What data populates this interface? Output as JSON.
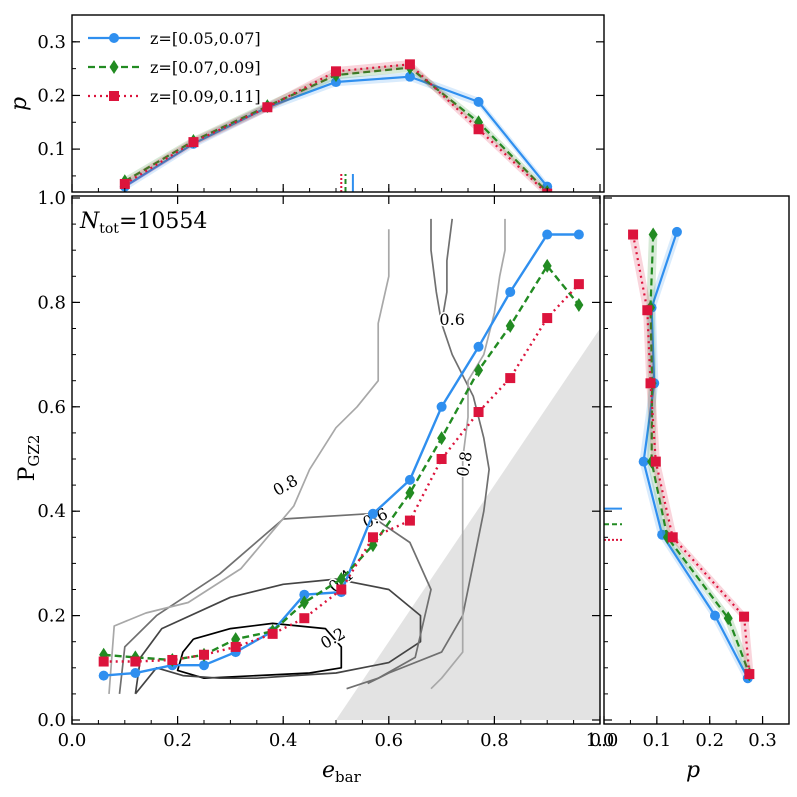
{
  "colors": {
    "s0": "#2f8fef",
    "s1": "#228b22",
    "s2": "#dc143c",
    "shade": "#e3e3e3"
  },
  "chart_data": [
    {
      "id": "main",
      "type": "line",
      "annotation_prefix": "N",
      "annotation_sub": "tot",
      "annotation_value": "=10554",
      "xlabel_main": "e",
      "xlabel_sub": "bar",
      "ylabel_main": "P",
      "ylabel_sub": "GZ2",
      "xlim": [
        0.0,
        1.0
      ],
      "ylim": [
        0.0,
        1.0
      ],
      "xticks": [
        "0.0",
        "0.2",
        "0.4",
        "0.6",
        "0.8",
        "1.0"
      ],
      "yticks": [
        "0.0",
        "0.2",
        "0.4",
        "0.6",
        "0.8",
        "1.0"
      ],
      "series": [
        {
          "name": "z=[0.05,0.07]",
          "color": "#2f8fef",
          "marker": "circle",
          "dash": "solid",
          "x": [
            0.06,
            0.12,
            0.19,
            0.25,
            0.31,
            0.38,
            0.44,
            0.51,
            0.57,
            0.64,
            0.7,
            0.77,
            0.83,
            0.9,
            0.96
          ],
          "y": [
            0.085,
            0.09,
            0.105,
            0.105,
            0.13,
            0.17,
            0.24,
            0.245,
            0.395,
            0.46,
            0.6,
            0.715,
            0.82,
            0.93,
            0.93
          ]
        },
        {
          "name": "z=[0.07,0.09]",
          "color": "#228b22",
          "marker": "diamond",
          "dash": "dashed",
          "x": [
            0.06,
            0.12,
            0.19,
            0.25,
            0.31,
            0.38,
            0.44,
            0.51,
            0.57,
            0.64,
            0.7,
            0.77,
            0.83,
            0.9,
            0.96
          ],
          "y": [
            0.125,
            0.12,
            0.115,
            0.125,
            0.155,
            0.17,
            0.225,
            0.27,
            0.335,
            0.435,
            0.54,
            0.67,
            0.755,
            0.87,
            0.795
          ]
        },
        {
          "name": "z=[0.09,0.11]",
          "color": "#dc143c",
          "marker": "square",
          "dash": "dotted",
          "x": [
            0.06,
            0.12,
            0.19,
            0.25,
            0.31,
            0.38,
            0.44,
            0.51,
            0.57,
            0.64,
            0.7,
            0.77,
            0.83,
            0.9,
            0.96
          ],
          "y": [
            0.112,
            0.112,
            0.115,
            0.125,
            0.14,
            0.165,
            0.195,
            0.25,
            0.35,
            0.382,
            0.5,
            0.59,
            0.655,
            0.77,
            0.835
          ]
        }
      ],
      "contours": [
        {
          "label": "0.2",
          "level": 0.2,
          "color": "#000000",
          "points": [
            [
              0.23,
              0.155
            ],
            [
              0.3,
              0.175
            ],
            [
              0.38,
              0.185
            ],
            [
              0.48,
              0.175
            ],
            [
              0.51,
              0.14
            ],
            [
              0.51,
              0.1
            ],
            [
              0.45,
              0.09
            ],
            [
              0.35,
              0.085
            ],
            [
              0.25,
              0.08
            ],
            [
              0.2,
              0.095
            ],
            [
              0.21,
              0.13
            ],
            [
              0.23,
              0.155
            ]
          ]
        },
        {
          "label": "0.4",
          "level": 0.4,
          "color": "#444444",
          "points": [
            [
              0.12,
              0.05
            ],
            [
              0.13,
              0.12
            ],
            [
              0.17,
              0.175
            ],
            [
              0.3,
              0.235
            ],
            [
              0.4,
              0.26
            ],
            [
              0.5,
              0.27
            ],
            [
              0.6,
              0.25
            ],
            [
              0.66,
              0.2
            ],
            [
              0.66,
              0.15
            ],
            [
              0.6,
              0.11
            ],
            [
              0.5,
              0.09
            ],
            [
              0.42,
              0.085
            ],
            [
              0.35,
              0.08
            ],
            [
              0.28,
              0.08
            ],
            [
              0.21,
              0.085
            ],
            [
              0.16,
              0.1
            ],
            [
              0.12,
              0.05
            ]
          ]
        },
        {
          "label": "0.6",
          "level": 0.6,
          "color": "#707070",
          "points": [
            [
              0.09,
              0.05
            ],
            [
              0.1,
              0.14
            ],
            [
              0.16,
              0.2
            ],
            [
              0.28,
              0.28
            ],
            [
              0.4,
              0.385
            ],
            [
              0.56,
              0.395
            ],
            [
              0.64,
              0.34
            ],
            [
              0.68,
              0.25
            ],
            [
              0.65,
              0.12
            ],
            [
              0.58,
              0.08
            ],
            [
              0.52,
              0.06
            ]
          ]
        },
        {
          "label": "0.8",
          "level": 0.8,
          "color": "#a8a8a8",
          "points": [
            [
              0.07,
              0.05
            ],
            [
              0.08,
              0.18
            ],
            [
              0.14,
              0.205
            ],
            [
              0.22,
              0.225
            ],
            [
              0.32,
              0.29
            ],
            [
              0.42,
              0.41
            ],
            [
              0.45,
              0.48
            ],
            [
              0.5,
              0.56
            ],
            [
              0.54,
              0.6
            ],
            [
              0.58,
              0.65
            ],
            [
              0.58,
              0.76
            ],
            [
              0.6,
              0.85
            ],
            [
              0.6,
              0.94
            ]
          ]
        },
        {
          "label": "0.6",
          "level": 0.6,
          "color": "#707070",
          "points": [
            [
              0.68,
              0.96
            ],
            [
              0.68,
              0.9
            ],
            [
              0.69,
              0.82
            ],
            [
              0.7,
              0.76
            ],
            [
              0.72,
              0.7
            ],
            [
              0.76,
              0.62
            ],
            [
              0.78,
              0.54
            ],
            [
              0.79,
              0.48
            ],
            [
              0.78,
              0.4
            ],
            [
              0.76,
              0.3
            ],
            [
              0.74,
              0.2
            ],
            [
              0.7,
              0.13
            ],
            [
              0.6,
              0.09
            ],
            [
              0.56,
              0.07
            ]
          ]
        },
        {
          "label": "0.8",
          "level": 0.8,
          "color": "#a8a8a8",
          "points": [
            [
              0.82,
              0.96
            ],
            [
              0.82,
              0.9
            ],
            [
              0.81,
              0.85
            ],
            [
              0.8,
              0.78
            ],
            [
              0.78,
              0.7
            ],
            [
              0.75,
              0.65
            ],
            [
              0.75,
              0.58
            ],
            [
              0.74,
              0.5
            ],
            [
              0.74,
              0.44
            ],
            [
              0.74,
              0.36
            ],
            [
              0.74,
              0.3
            ],
            [
              0.74,
              0.2
            ],
            [
              0.74,
              0.13
            ],
            [
              0.7,
              0.08
            ],
            [
              0.68,
              0.06
            ]
          ]
        },
        {
          "label": "",
          "level": 0.6,
          "color": "#707070",
          "points": [
            [
              0.72,
              0.96
            ],
            [
              0.71,
              0.88
            ],
            [
              0.71,
              0.82
            ],
            [
              0.7,
              0.76
            ]
          ]
        }
      ],
      "contour_label_positions": [
        {
          "text": "0.2",
          "x": 0.495,
          "y": 0.155,
          "angle": -30,
          "color": "#000000"
        },
        {
          "text": "0.4",
          "x": 0.51,
          "y": 0.265,
          "angle": -40,
          "color": "#444444"
        },
        {
          "text": "0.6",
          "x": 0.575,
          "y": 0.385,
          "angle": -25,
          "color": "#707070"
        },
        {
          "text": "0.8",
          "x": 0.405,
          "y": 0.448,
          "angle": -30,
          "color": "#a8a8a8"
        },
        {
          "text": "0.6",
          "x": 0.72,
          "y": 0.765,
          "angle": 0,
          "color": "#707070"
        },
        {
          "text": "0.8",
          "x": 0.745,
          "y": 0.49,
          "angle": -80,
          "color": "#a8a8a8"
        }
      ],
      "shaded_region": "e_bar > 0.5 + P_GZ2 * 0.67"
    },
    {
      "id": "top",
      "type": "line",
      "ylabel": "p",
      "xlim": [
        0.0,
        1.0
      ],
      "ylim": [
        0.02,
        0.35
      ],
      "yticks": [
        "0.1",
        "0.2",
        "0.3"
      ],
      "series": [
        {
          "name": "z=[0.05,0.07]",
          "x": [
            0.1,
            0.23,
            0.37,
            0.5,
            0.64,
            0.77,
            0.9
          ],
          "y": [
            0.03,
            0.11,
            0.178,
            0.225,
            0.235,
            0.188,
            0.03
          ]
        },
        {
          "name": "z=[0.07,0.09]",
          "x": [
            0.1,
            0.23,
            0.37,
            0.5,
            0.64,
            0.77,
            0.9
          ],
          "y": [
            0.04,
            0.115,
            0.18,
            0.238,
            0.252,
            0.15,
            0.02
          ]
        },
        {
          "name": "z=[0.09,0.11]",
          "x": [
            0.1,
            0.23,
            0.37,
            0.5,
            0.64,
            0.77,
            0.9
          ],
          "y": [
            0.035,
            0.113,
            0.178,
            0.245,
            0.258,
            0.137,
            0.017
          ]
        }
      ],
      "medians": [
        0.532,
        0.518,
        0.51
      ]
    },
    {
      "id": "right",
      "type": "line",
      "xlabel": "p",
      "xlim": [
        0.0,
        0.35
      ],
      "ylim": [
        0.0,
        1.0
      ],
      "xticks": [
        "0.0",
        "0.1",
        "0.2",
        "0.3"
      ],
      "series": [
        {
          "name": "z=[0.05,0.07]",
          "x": [
            0.138,
            0.09,
            0.095,
            0.075,
            0.11,
            0.21,
            0.272
          ],
          "y": [
            0.935,
            0.79,
            0.645,
            0.495,
            0.355,
            0.2,
            0.08
          ]
        },
        {
          "name": "z=[0.07,0.09]",
          "x": [
            0.093,
            0.088,
            0.091,
            0.09,
            0.12,
            0.235,
            0.275
          ],
          "y": [
            0.93,
            0.79,
            0.645,
            0.495,
            0.35,
            0.195,
            0.088
          ]
        },
        {
          "name": "z=[0.09,0.11]",
          "x": [
            0.055,
            0.082,
            0.088,
            0.098,
            0.13,
            0.265,
            0.275
          ],
          "y": [
            0.93,
            0.785,
            0.645,
            0.495,
            0.35,
            0.198,
            0.088
          ]
        }
      ],
      "medians": [
        0.405,
        0.375,
        0.345
      ]
    }
  ]
}
